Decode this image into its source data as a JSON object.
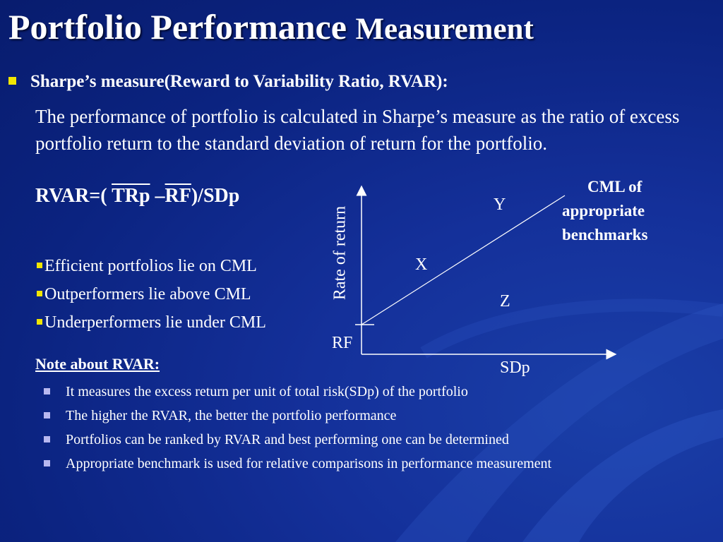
{
  "slide": {
    "title_part1": "Portfolio Performance",
    "title_part2": "Measurement",
    "bullet_heading": "Sharpe’s measure(Reward to Variability Ratio, RVAR):",
    "paragraph": "The performance of portfolio is calculated in Sharpe’s measure as the ratio of excess portfolio return to the standard deviation of return for the portfolio.",
    "formula": {
      "prefix": "RVAR=( ",
      "tr": "TRp",
      "dash": " –",
      "rf": "RF",
      "suffix": ")/SDp"
    },
    "cml_points": [
      "Efficient portfolios lie on CML",
      "Outperformers lie above CML",
      "Underperformers lie under CML"
    ],
    "note_heading": "Note about RVAR:",
    "notes": [
      "It measures the excess return per unit of total risk(SDp) of the portfolio",
      "The higher the RVAR, the better the portfolio performance",
      "Portfolios can be ranked by RVAR and best performing one can be determined",
      "Appropriate benchmark is used for relative comparisons in performance measurement"
    ]
  },
  "diagram": {
    "y_axis_label": "Rate of  return",
    "x_axis_label": "SDp",
    "origin_label": "RF",
    "point_y": "Y",
    "point_x": "X",
    "point_z": "Z",
    "cml_label": [
      "CML of",
      "appropriate",
      "benchmarks"
    ]
  },
  "colors": {
    "background": "#0b2380",
    "text": "#ffffff",
    "bullet_yellow": "#f2e600",
    "bullet_lavender": "#b8b8f0"
  }
}
